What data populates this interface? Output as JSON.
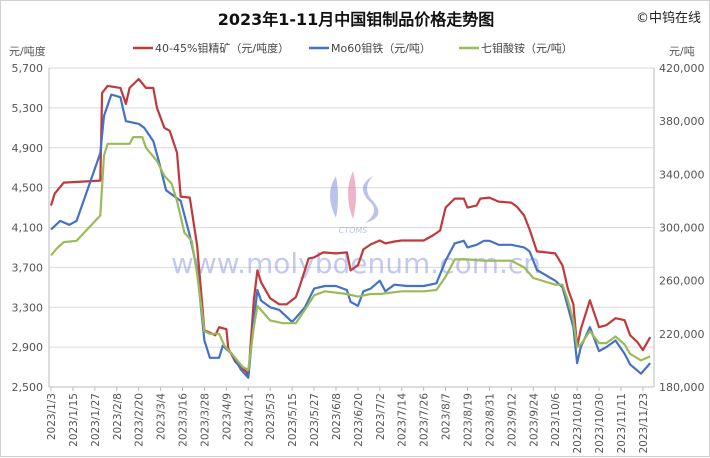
{
  "chart_data": {
    "type": "line",
    "title": "2023年1-11月中国钼制品价格走势图",
    "copyright": "©中钨在线",
    "watermark": "www.molybdenum.com.cn",
    "logo_text": "CTOMS",
    "ylabel_left": "元/吨度",
    "ylabel_right": "元/吨",
    "ylim_left": [
      2500,
      5700
    ],
    "ylim_right": [
      180000,
      420000
    ],
    "yticks_left": [
      "5,700",
      "5,300",
      "4,900",
      "4,500",
      "4,100",
      "3,700",
      "3,300",
      "2,900",
      "2,500"
    ],
    "yticks_right": [
      "420,000",
      "380,000",
      "340,000",
      "300,000",
      "260,000",
      "220,000",
      "180,000"
    ],
    "xticks": [
      "2023/1/3",
      "2023/1/15",
      "2023/1/27",
      "2023/2/8",
      "2023/2/20",
      "2023/3/4",
      "2023/3/16",
      "2023/3/28",
      "2023/4/9",
      "2023/4/21",
      "2023/5/3",
      "2023/5/15",
      "2023/5/27",
      "2023/6/8",
      "2023/6/20",
      "2023/7/2",
      "2023/7/14",
      "2023/7/26",
      "2023/8/7",
      "2023/8/19",
      "2023/8/31",
      "2023/9/12",
      "2023/9/24",
      "2023/10/6",
      "2023/10/18",
      "2023/10/30",
      "2023/11/11",
      "2023/11/23"
    ],
    "grid": "horizontal",
    "legend_position": "top",
    "series": [
      {
        "name": "40-45%钼精矿（元/吨度）",
        "axis": "left",
        "color": "#c0393b",
        "points": [
          [
            "1/3",
            4320
          ],
          [
            "1/5",
            4440
          ],
          [
            "1/10",
            4550
          ],
          [
            "1/30",
            4570
          ],
          [
            "1/31",
            5450
          ],
          [
            "2/3",
            5520
          ],
          [
            "2/10",
            5500
          ],
          [
            "2/13",
            5340
          ],
          [
            "2/15",
            5500
          ],
          [
            "2/20",
            5590
          ],
          [
            "2/24",
            5500
          ],
          [
            "2/28",
            5500
          ],
          [
            "3/2",
            5300
          ],
          [
            "3/6",
            5100
          ],
          [
            "3/9",
            5070
          ],
          [
            "3/13",
            4850
          ],
          [
            "3/15",
            4410
          ],
          [
            "3/20",
            4400
          ],
          [
            "3/24",
            3920
          ],
          [
            "3/28",
            3070
          ],
          [
            "4/3",
            3020
          ],
          [
            "4/5",
            3100
          ],
          [
            "4/9",
            3080
          ],
          [
            "4/10",
            2890
          ],
          [
            "4/14",
            2750
          ],
          [
            "4/20",
            2650
          ],
          [
            "4/21",
            2600
          ],
          [
            "4/24",
            3370
          ],
          [
            "4/26",
            3670
          ],
          [
            "4/28",
            3550
          ],
          [
            "5/3",
            3390
          ],
          [
            "5/8",
            3330
          ],
          [
            "5/12",
            3330
          ],
          [
            "5/17",
            3400
          ],
          [
            "5/19",
            3500
          ],
          [
            "5/24",
            3790
          ],
          [
            "5/27",
            3800
          ],
          [
            "6/1",
            3850
          ],
          [
            "6/8",
            3840
          ],
          [
            "6/14",
            3850
          ],
          [
            "6/16",
            3670
          ],
          [
            "6/20",
            3720
          ],
          [
            "6/23",
            3880
          ],
          [
            "6/27",
            3930
          ],
          [
            "7/2",
            3970
          ],
          [
            "7/5",
            3940
          ],
          [
            "7/10",
            3960
          ],
          [
            "7/14",
            3970
          ],
          [
            "7/26",
            3970
          ],
          [
            "7/31",
            4020
          ],
          [
            "8/4",
            4070
          ],
          [
            "8/7",
            4300
          ],
          [
            "8/12",
            4390
          ],
          [
            "8/17",
            4390
          ],
          [
            "8/19",
            4300
          ],
          [
            "8/24",
            4320
          ],
          [
            "8/26",
            4390
          ],
          [
            "8/31",
            4400
          ],
          [
            "9/5",
            4360
          ],
          [
            "9/12",
            4350
          ],
          [
            "9/15",
            4310
          ],
          [
            "9/19",
            4220
          ],
          [
            "9/22",
            4080
          ],
          [
            "9/26",
            3860
          ],
          [
            "10/6",
            3840
          ],
          [
            "10/10",
            3720
          ],
          [
            "10/13",
            3480
          ],
          [
            "10/16",
            3330
          ],
          [
            "10/18",
            2900
          ],
          [
            "10/20",
            3080
          ],
          [
            "10/25",
            3370
          ],
          [
            "10/30",
            3100
          ],
          [
            "11/3",
            3120
          ],
          [
            "11/8",
            3190
          ],
          [
            "11/13",
            3170
          ],
          [
            "11/16",
            3020
          ],
          [
            "11/20",
            2950
          ],
          [
            "11/23",
            2870
          ],
          [
            "11/27",
            3000
          ]
        ]
      },
      {
        "name": "Mo60钼铁（元/吨）",
        "axis": "right",
        "color": "#4472c4",
        "points": [
          [
            "1/3",
            298500
          ],
          [
            "1/8",
            305000
          ],
          [
            "1/13",
            302000
          ],
          [
            "1/17",
            305000
          ],
          [
            "1/30",
            356000
          ],
          [
            "2/1",
            384000
          ],
          [
            "2/5",
            400000
          ],
          [
            "2/10",
            398000
          ],
          [
            "2/13",
            380000
          ],
          [
            "2/20",
            378000
          ],
          [
            "2/23",
            375000
          ],
          [
            "2/28",
            365000
          ],
          [
            "3/3",
            350000
          ],
          [
            "3/7",
            328000
          ],
          [
            "3/10",
            325000
          ],
          [
            "3/15",
            320000
          ],
          [
            "3/20",
            294000
          ],
          [
            "3/24",
            268000
          ],
          [
            "3/28",
            215000
          ],
          [
            "3/31",
            202000
          ],
          [
            "4/5",
            202000
          ],
          [
            "4/7",
            211000
          ],
          [
            "4/12",
            205000
          ],
          [
            "4/17",
            193000
          ],
          [
            "4/21",
            187000
          ],
          [
            "4/24",
            230000
          ],
          [
            "4/26",
            253000
          ],
          [
            "4/28",
            245000
          ],
          [
            "5/3",
            240000
          ],
          [
            "5/8",
            238000
          ],
          [
            "5/15",
            229000
          ],
          [
            "5/17",
            232000
          ],
          [
            "5/22",
            240000
          ],
          [
            "5/27",
            254000
          ],
          [
            "6/2",
            256000
          ],
          [
            "6/8",
            256000
          ],
          [
            "6/14",
            253000
          ],
          [
            "6/16",
            244000
          ],
          [
            "6/20",
            241000
          ],
          [
            "6/23",
            252000
          ],
          [
            "6/27",
            254000
          ],
          [
            "7/2",
            260000
          ],
          [
            "7/5",
            252000
          ],
          [
            "7/10",
            257000
          ],
          [
            "7/17",
            256000
          ],
          [
            "7/26",
            256000
          ],
          [
            "8/2",
            258000
          ],
          [
            "8/7",
            275000
          ],
          [
            "8/12",
            288000
          ],
          [
            "8/17",
            290000
          ],
          [
            "8/19",
            285000
          ],
          [
            "8/24",
            287000
          ],
          [
            "8/28",
            290000
          ],
          [
            "8/31",
            290000
          ],
          [
            "9/5",
            287000
          ],
          [
            "9/12",
            287000
          ],
          [
            "9/19",
            285000
          ],
          [
            "9/22",
            282000
          ],
          [
            "9/26",
            268000
          ],
          [
            "10/6",
            260000
          ],
          [
            "10/10",
            255000
          ],
          [
            "10/13",
            240000
          ],
          [
            "10/16",
            225000
          ],
          [
            "10/18",
            198000
          ],
          [
            "10/20",
            210000
          ],
          [
            "10/25",
            225000
          ],
          [
            "10/30",
            207000
          ],
          [
            "11/3",
            210000
          ],
          [
            "11/8",
            215000
          ],
          [
            "11/13",
            205000
          ],
          [
            "11/16",
            197000
          ],
          [
            "11/22",
            190000
          ],
          [
            "11/27",
            198000
          ]
        ]
      },
      {
        "name": "七钼酸铵（元/吨）",
        "axis": "right",
        "color": "#9bbb59",
        "points": [
          [
            "1/3",
            279000
          ],
          [
            "1/6",
            284000
          ],
          [
            "1/10",
            289000
          ],
          [
            "1/17",
            290000
          ],
          [
            "1/30",
            309000
          ],
          [
            "2/1",
            354000
          ],
          [
            "2/3",
            363000
          ],
          [
            "2/10",
            363000
          ],
          [
            "2/15",
            363000
          ],
          [
            "2/17",
            368000
          ],
          [
            "2/22",
            368000
          ],
          [
            "2/24",
            360000
          ],
          [
            "3/2",
            350000
          ],
          [
            "3/6",
            339000
          ],
          [
            "3/10",
            333000
          ],
          [
            "3/13",
            320000
          ],
          [
            "3/17",
            296000
          ],
          [
            "3/21",
            290000
          ],
          [
            "3/24",
            265000
          ],
          [
            "3/28",
            222000
          ],
          [
            "3/31",
            220000
          ],
          [
            "4/5",
            220000
          ],
          [
            "4/8",
            211000
          ],
          [
            "4/12",
            205000
          ],
          [
            "4/18",
            195000
          ],
          [
            "4/21",
            193000
          ],
          [
            "4/24",
            225000
          ],
          [
            "4/26",
            241000
          ],
          [
            "5/3",
            230000
          ],
          [
            "5/10",
            228000
          ],
          [
            "5/17",
            228000
          ],
          [
            "5/22",
            238000
          ],
          [
            "5/27",
            249000
          ],
          [
            "6/2",
            252000
          ],
          [
            "6/14",
            250000
          ],
          [
            "6/20",
            248000
          ],
          [
            "6/27",
            250000
          ],
          [
            "7/2",
            250000
          ],
          [
            "7/14",
            252000
          ],
          [
            "7/26",
            252000
          ],
          [
            "8/2",
            253000
          ],
          [
            "8/7",
            263000
          ],
          [
            "8/12",
            276000
          ],
          [
            "8/19",
            276000
          ],
          [
            "8/28",
            275000
          ],
          [
            "9/12",
            275000
          ],
          [
            "9/19",
            270000
          ],
          [
            "9/24",
            262000
          ],
          [
            "10/6",
            257000
          ],
          [
            "10/10",
            257000
          ],
          [
            "10/13",
            245000
          ],
          [
            "10/16",
            230000
          ],
          [
            "10/18",
            210000
          ],
          [
            "10/20",
            212000
          ],
          [
            "10/25",
            222000
          ],
          [
            "10/30",
            213000
          ],
          [
            "11/3",
            213000
          ],
          [
            "11/8",
            218000
          ],
          [
            "11/13",
            212000
          ],
          [
            "11/16",
            205000
          ],
          [
            "11/22",
            200000
          ],
          [
            "11/27",
            203000
          ]
        ]
      }
    ]
  }
}
